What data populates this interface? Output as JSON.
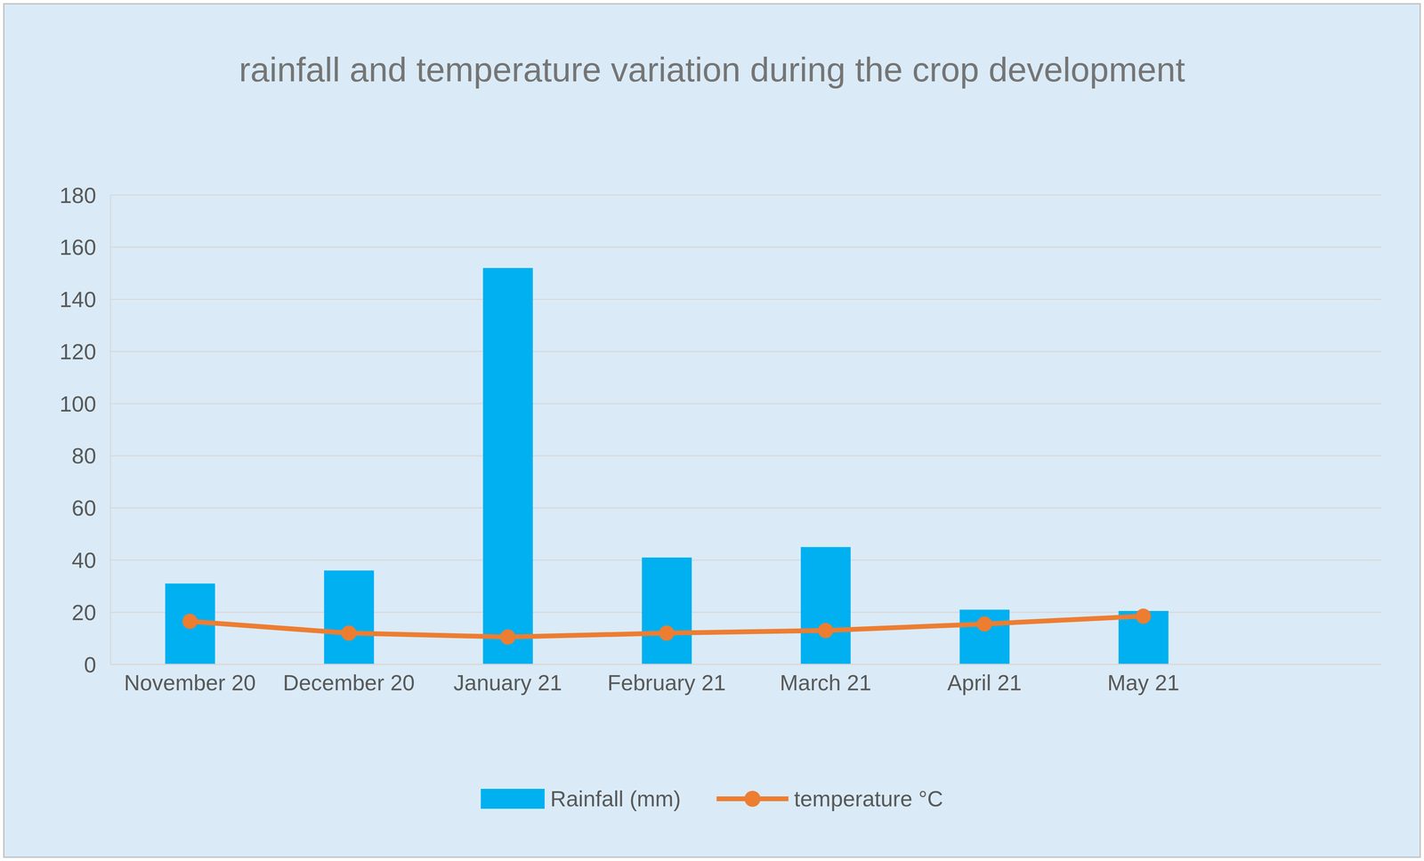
{
  "chart_data": {
    "type": "bar",
    "title": "rainfall and temperature variation during the crop development",
    "categories": [
      "November 20",
      "December 20",
      "January 21",
      "February 21",
      "March 21",
      "April 21",
      "May 21",
      null
    ],
    "series": [
      {
        "name": "Rainfall (mm)",
        "type": "bar",
        "color": "#00B0F0",
        "values": [
          31,
          36,
          152,
          41,
          45,
          21,
          20.5,
          null
        ]
      },
      {
        "name": "temperature °C",
        "type": "line",
        "color": "#ED7D31",
        "marker": "circle",
        "values": [
          16.5,
          12,
          10.5,
          12,
          13,
          15.5,
          18.5,
          null
        ]
      }
    ],
    "ylim": [
      0,
      180
    ],
    "yticks": [
      0,
      20,
      40,
      60,
      80,
      100,
      120,
      140,
      160,
      180
    ],
    "grid": true,
    "legend": "bottom"
  }
}
